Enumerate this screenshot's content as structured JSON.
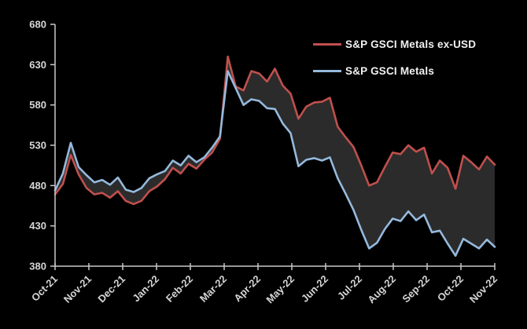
{
  "chart_data": {
    "type": "line",
    "title": "",
    "xlabel": "",
    "ylabel": "",
    "ylim": [
      380,
      680
    ],
    "y_ticks": [
      380,
      430,
      480,
      530,
      580,
      630,
      680
    ],
    "x_tick_labels": [
      "Oct-21",
      "Nov-21",
      "Dec-21",
      "Jan-22",
      "Feb-22",
      "Mar-22",
      "Apr-22",
      "May-22",
      "Jun-22",
      "Jul-22",
      "Aug-22",
      "Sep-22",
      "Oct-22",
      "Nov-22"
    ],
    "x_label_rotation": -45,
    "grid": false,
    "legend_position": "inside-top-right",
    "fill_between_series": true,
    "colors": {
      "background": "#000000",
      "axis": "#c9c9c9",
      "tick_label": "#d6d6d6",
      "fill_between": "#2b2b2b"
    },
    "series": [
      {
        "name": "S&P GSCI Metals ex-USD",
        "color": "#c0504d",
        "values": [
          469,
          482,
          518,
          494,
          477,
          469,
          471,
          465,
          473,
          461,
          457,
          461,
          473,
          479,
          488,
          502,
          495,
          507,
          501,
          512,
          521,
          538,
          640,
          603,
          598,
          622,
          619,
          609,
          625,
          604,
          594,
          563,
          578,
          583,
          584,
          589,
          553,
          540,
          528,
          505,
          480,
          484,
          503,
          521,
          519,
          530,
          522,
          527,
          495,
          511,
          502,
          476,
          517,
          509,
          500,
          516,
          506
        ]
      },
      {
        "name": "S&P GSCI Metals",
        "color": "#95b9dd",
        "values": [
          474,
          495,
          533,
          503,
          493,
          484,
          487,
          481,
          490,
          475,
          472,
          477,
          489,
          494,
          498,
          511,
          505,
          517,
          509,
          515,
          527,
          541,
          622,
          601,
          580,
          587,
          585,
          576,
          575,
          557,
          545,
          504,
          512,
          514,
          511,
          515,
          489,
          470,
          450,
          425,
          402,
          409,
          426,
          439,
          436,
          448,
          437,
          444,
          422,
          424,
          408,
          393,
          414,
          408,
          402,
          413,
          404
        ]
      }
    ]
  }
}
